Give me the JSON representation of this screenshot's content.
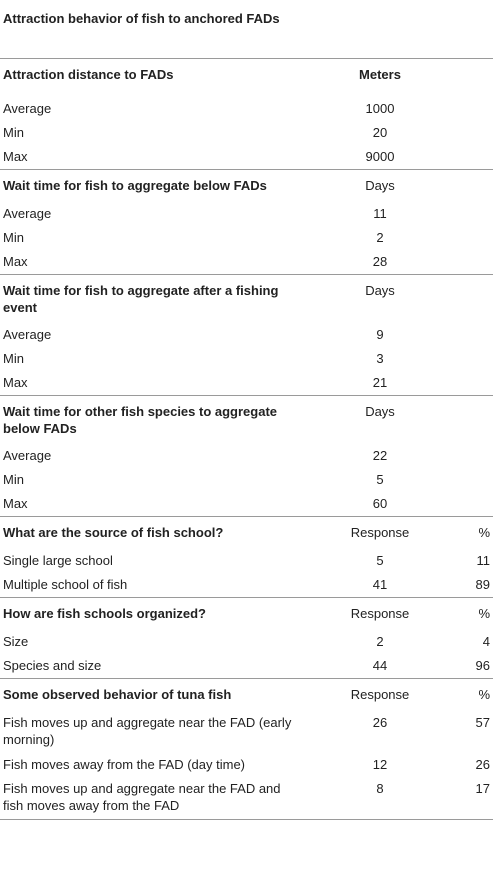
{
  "title": "Attraction behavior of fish to anchored FADs",
  "sections": [
    {
      "header": {
        "label": "Attraction distance to FADs",
        "col1": "Meters",
        "col2": ""
      },
      "rows": [
        {
          "label": "Average",
          "col1": "1000",
          "col2": ""
        },
        {
          "label": "Min",
          "col1": "20",
          "col2": ""
        },
        {
          "label": "Max",
          "col1": "9000",
          "col2": ""
        }
      ]
    },
    {
      "header": {
        "label": "Wait time for fish to aggregate below FADs",
        "col1": "Days",
        "col2": ""
      },
      "rows": [
        {
          "label": "Average",
          "col1": "11",
          "col2": ""
        },
        {
          "label": "Min",
          "col1": "2",
          "col2": ""
        },
        {
          "label": "Max",
          "col1": "28",
          "col2": ""
        }
      ]
    },
    {
      "header": {
        "label": "Wait time for fish to aggregate after a fishing event",
        "col1": "Days",
        "col2": ""
      },
      "rows": [
        {
          "label": "Average",
          "col1": "9",
          "col2": ""
        },
        {
          "label": "Min",
          "col1": "3",
          "col2": ""
        },
        {
          "label": "Max",
          "col1": "21",
          "col2": ""
        }
      ]
    },
    {
      "header": {
        "label": "Wait time for other fish species to aggregate below FADs",
        "col1": "Days",
        "col2": ""
      },
      "rows": [
        {
          "label": "Average",
          "col1": "22",
          "col2": ""
        },
        {
          "label": "Min",
          "col1": "5",
          "col2": ""
        },
        {
          "label": "Max",
          "col1": "60",
          "col2": ""
        }
      ]
    },
    {
      "header": {
        "label": "What are the source of fish school?",
        "col1": "Response",
        "col2": "%"
      },
      "rows": [
        {
          "label": "Single large school",
          "col1": "5",
          "col2": "11"
        },
        {
          "label": "Multiple school of fish",
          "col1": "41",
          "col2": "89"
        }
      ]
    },
    {
      "header": {
        "label": "How are fish schools organized?",
        "col1": "Response",
        "col2": "%"
      },
      "rows": [
        {
          "label": "Size",
          "col1": "2",
          "col2": "4"
        },
        {
          "label": "Species and size",
          "col1": "44",
          "col2": "96"
        }
      ]
    },
    {
      "header": {
        "label": "Some observed behavior of tuna fish",
        "col1": "Response",
        "col2": "%"
      },
      "rows": [
        {
          "label": "Fish moves up and aggregate near the FAD (early morning)",
          "col1": "26",
          "col2": "57"
        },
        {
          "label": "Fish moves away from the FAD (day time)",
          "col1": "12",
          "col2": "26"
        },
        {
          "label": "Fish moves up and aggregate near the FAD and fish moves away from the FAD",
          "col1": "8",
          "col2": "17"
        }
      ]
    }
  ]
}
